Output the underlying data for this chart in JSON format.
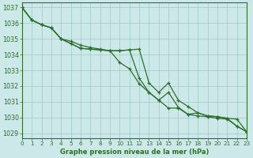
{
  "title": "Graphe pression niveau de la mer (hPa)",
  "bg_color": "#cce8e8",
  "grid_color": "#99cccc",
  "line_color": "#2d6e2d",
  "text_color": "#2d6e2d",
  "xlim": [
    0,
    23
  ],
  "ylim": [
    1028.7,
    1037.3
  ],
  "yticks": [
    1029,
    1030,
    1031,
    1032,
    1033,
    1034,
    1035,
    1036,
    1037
  ],
  "xticks": [
    0,
    1,
    2,
    3,
    4,
    5,
    6,
    7,
    8,
    9,
    10,
    11,
    12,
    13,
    14,
    15,
    16,
    17,
    18,
    19,
    20,
    21,
    22,
    23
  ],
  "series1": [
    1037.0,
    1036.2,
    1035.9,
    1035.7,
    1035.0,
    1034.7,
    1034.4,
    1034.35,
    1034.3,
    1034.25,
    1033.5,
    1033.1,
    1032.15,
    1031.6,
    1031.1,
    1030.6,
    1030.6,
    1030.2,
    1030.1,
    1030.05,
    1029.95,
    1029.9,
    1029.45,
    1029.1
  ],
  "series2": [
    1037.0,
    1036.2,
    1035.9,
    1035.7,
    1035.0,
    1034.7,
    1034.4,
    1034.35,
    1034.3,
    1034.25,
    1034.25,
    1034.3,
    1034.35,
    1032.2,
    1031.6,
    1032.2,
    1031.1,
    1030.7,
    1030.3,
    1030.1,
    1030.05,
    1029.95,
    1029.9,
    1029.1
  ],
  "series3": [
    1037.0,
    1036.2,
    1035.9,
    1035.7,
    1035.0,
    1034.85,
    1034.6,
    1034.45,
    1034.35,
    1034.25,
    1034.25,
    1034.3,
    1032.5,
    1031.6,
    1031.1,
    1031.6,
    1030.65,
    1030.2,
    1030.3,
    1030.1,
    1030.05,
    1029.95,
    1029.45,
    1029.1
  ]
}
